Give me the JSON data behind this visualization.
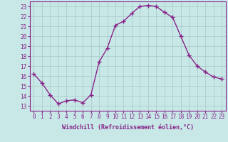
{
  "x": [
    0,
    1,
    2,
    3,
    4,
    5,
    6,
    7,
    8,
    9,
    10,
    11,
    12,
    13,
    14,
    15,
    16,
    17,
    18,
    19,
    20,
    21,
    22,
    23
  ],
  "y": [
    16.2,
    15.3,
    14.1,
    13.2,
    13.5,
    13.6,
    13.3,
    14.1,
    17.4,
    18.8,
    21.1,
    21.5,
    22.3,
    23.0,
    23.1,
    23.0,
    22.4,
    21.9,
    20.0,
    18.1,
    17.0,
    16.4,
    15.9,
    15.7
  ],
  "line_color": "#882288",
  "marker": "+",
  "marker_size": 4,
  "marker_lw": 1.0,
  "bg_color": "#c8e8e8",
  "grid_color": "#a8c8c8",
  "xlabel": "Windchill (Refroidissement éolien,°C)",
  "xlabel_fontsize": 6.0,
  "ylabel_ticks": [
    13,
    14,
    15,
    16,
    17,
    18,
    19,
    20,
    21,
    22,
    23
  ],
  "xlim": [
    -0.5,
    23.5
  ],
  "ylim": [
    12.5,
    23.5
  ],
  "tick_fontsize": 5.5,
  "line_width": 1.0
}
